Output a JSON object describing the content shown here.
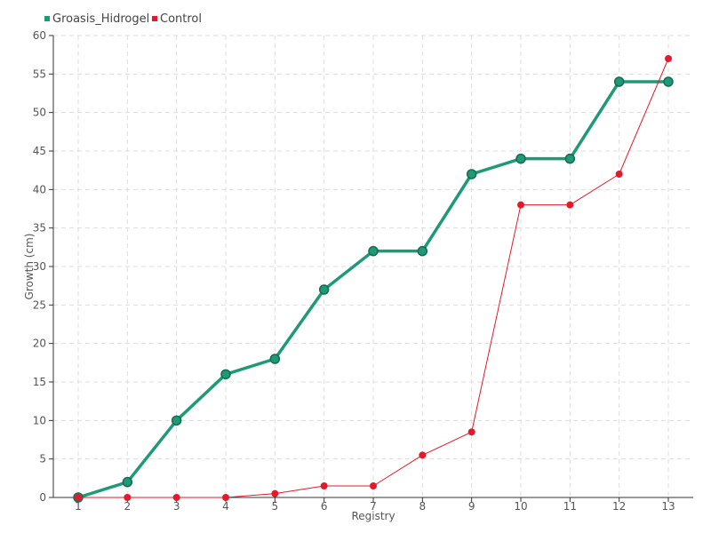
{
  "chart_data": {
    "type": "line",
    "xlabel": "Registry",
    "ylabel": "Growth (cm)",
    "x": [
      "1",
      "2",
      "3",
      "4",
      "5",
      "6",
      "7",
      "8",
      "9",
      "10",
      "11",
      "12",
      "13"
    ],
    "ylim": [
      0,
      60
    ],
    "yticks": [
      0,
      5,
      10,
      15,
      20,
      25,
      30,
      35,
      40,
      45,
      50,
      55,
      60
    ],
    "grid": true,
    "legend_position": "top-left",
    "series": [
      {
        "name": "Groasis_Hidrogel",
        "color": "#1e9a76",
        "values": [
          0,
          2,
          10,
          16,
          18,
          27,
          32,
          32,
          42,
          44,
          44,
          54,
          54
        ]
      },
      {
        "name": "Control",
        "color": "#e31a2c",
        "values": [
          0,
          0,
          0,
          0,
          0.5,
          1.5,
          1.5,
          5.5,
          8.5,
          38,
          38,
          42,
          57
        ]
      }
    ]
  }
}
